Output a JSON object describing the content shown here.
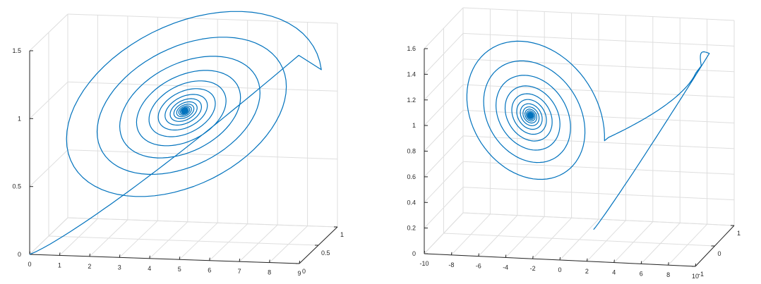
{
  "chart_data": [
    {
      "type": "line",
      "projection": "3d",
      "title": "",
      "xlabel": "",
      "ylabel": "",
      "zlabel": "",
      "xlim": [
        0,
        9
      ],
      "ylim": [
        0,
        1
      ],
      "zlim": [
        0,
        1.5
      ],
      "xticks": [
        "0",
        "1",
        "2",
        "3",
        "4",
        "5",
        "6",
        "7",
        "8",
        "9"
      ],
      "yticks": [
        "0",
        "0.5",
        "1"
      ],
      "zticks": [
        "0",
        "0.5",
        "1",
        "1.5"
      ],
      "grid": true,
      "color": "#0072bd",
      "series": [
        {
          "kind": "spiral",
          "start": [
            0,
            0,
            0
          ],
          "center": [
            4.6,
            0.45,
            0.97
          ],
          "x_amp": 4.3,
          "z_amp": 0.75,
          "turns": 20
        }
      ]
    },
    {
      "type": "line",
      "projection": "3d",
      "title": "",
      "xlabel": "",
      "ylabel": "",
      "zlabel": "",
      "xlim": [
        -10,
        10
      ],
      "ylim": [
        -1,
        1
      ],
      "zlim": [
        0,
        1.6
      ],
      "xticks": [
        "-10",
        "-8",
        "-6",
        "-4",
        "-2",
        "0",
        "2",
        "4",
        "6",
        "8",
        "10"
      ],
      "yticks": [
        "-1",
        "0",
        "1"
      ],
      "zticks": [
        "0",
        "0.2",
        "0.4",
        "0.6",
        "0.8",
        "1",
        "1.2",
        "1.4",
        "1.6"
      ],
      "grid": true,
      "color": "#0072bd",
      "series": [
        {
          "kind": "loop-then-spiral",
          "start": [
            1.2,
            0,
            0.1
          ],
          "loop_peak": [
            9.5,
            0,
            1.55
          ],
          "center": [
            -3.6,
            0,
            0.95
          ],
          "turns": 18
        }
      ]
    }
  ]
}
